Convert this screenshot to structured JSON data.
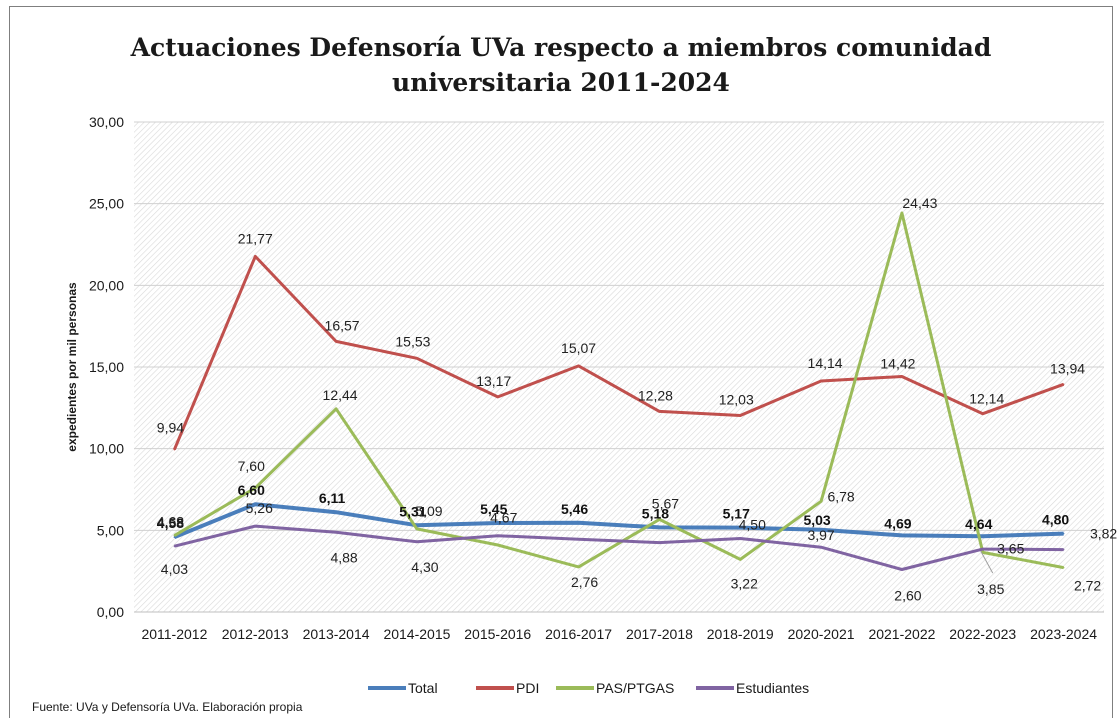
{
  "chart_data": {
    "type": "line",
    "title": [
      "Actuaciones Defensoría UVa respecto a miembros comunidad",
      "universitaria 2011-2024"
    ],
    "ylabel": "expedientes por mil personas",
    "xlabel": "",
    "ylim": [
      0,
      30
    ],
    "y_ticks": [
      "0,00",
      "5,00",
      "10,00",
      "15,00",
      "20,00",
      "25,00",
      "30,00"
    ],
    "y_tick_values": [
      0,
      5,
      10,
      15,
      20,
      25,
      30
    ],
    "categories": [
      "2011-2012",
      "2012-2013",
      "2013-2014",
      "2014-2015",
      "2015-2016",
      "2016-2017",
      "2017-2018",
      "2018-2019",
      "2020-2021",
      "2021-2022",
      "2022-2023",
      "2023-2024"
    ],
    "grid": "hatched background",
    "legend_position": "bottom",
    "series": [
      {
        "name": "Total",
        "color": "#4a7ebb",
        "values": [
          4.58,
          6.6,
          6.11,
          5.31,
          5.45,
          5.46,
          5.18,
          5.17,
          5.03,
          4.69,
          4.64,
          4.8
        ],
        "labels": [
          "4,58",
          "6,60",
          "6,11",
          "5,31",
          "5,45",
          "5,46",
          "5,18",
          "5,17",
          "5,03",
          "4,69",
          "4,64",
          "4,80"
        ]
      },
      {
        "name": "PDI",
        "color": "#c0504d",
        "values": [
          9.94,
          21.77,
          16.57,
          15.53,
          13.17,
          15.07,
          12.28,
          12.03,
          14.14,
          14.42,
          12.14,
          13.94
        ],
        "labels": [
          "9,94",
          "21,77",
          "16,57",
          "15,53",
          "13,17",
          "15,07",
          "12,28",
          "12,03",
          "14,14",
          "14,42",
          "12,14",
          "13,94"
        ]
      },
      {
        "name": "PAS/PTGAS",
        "color": "#9bbb59",
        "values": [
          4.68,
          7.6,
          12.44,
          5.09,
          4.1,
          2.76,
          5.67,
          3.22,
          6.78,
          24.43,
          3.65,
          2.72
        ],
        "labels": [
          "4,68",
          "7,60",
          "12,44",
          "5,09",
          "",
          "2,76",
          "5,67",
          "3,22",
          "6,78",
          "24,43",
          "3,65",
          "2,72"
        ]
      },
      {
        "name": "Estudiantes",
        "color": "#8064a2",
        "values": [
          4.03,
          5.26,
          4.88,
          4.3,
          4.67,
          4.45,
          4.25,
          4.5,
          3.97,
          2.6,
          3.85,
          3.82
        ],
        "labels": [
          "4,03",
          "5,26",
          "4,88",
          "4,30",
          "4,67",
          "",
          "",
          "4,50",
          "3,97",
          "2,60",
          "3,85",
          "3,82"
        ]
      }
    ]
  },
  "source": "Fuente: UVa y Defensoría UVa. Elaboración propia"
}
